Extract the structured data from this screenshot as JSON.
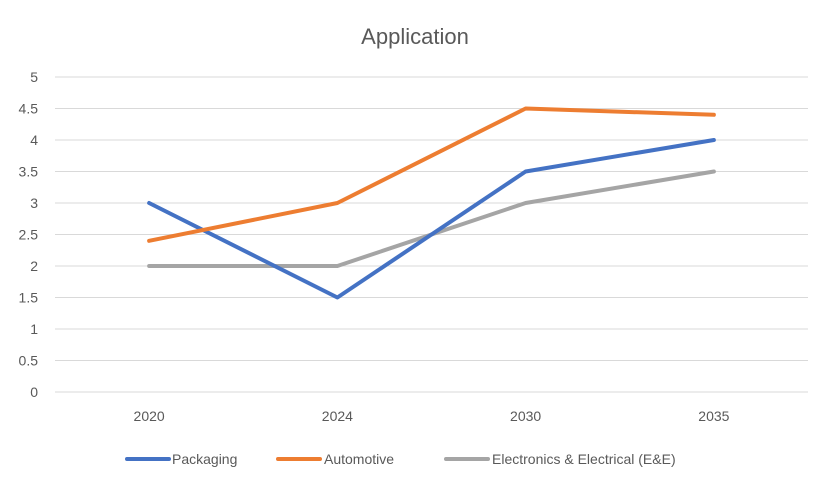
{
  "chart_data": {
    "type": "line",
    "title": "Application",
    "xlabel": "",
    "ylabel": "",
    "categories": [
      "2020",
      "2024",
      "2030",
      "2035"
    ],
    "ylim": [
      0,
      5
    ],
    "yticks": [
      0,
      0.5,
      1,
      1.5,
      2,
      2.5,
      3,
      3.5,
      4,
      4.5,
      5
    ],
    "ytick_labels": [
      "0",
      "0.5",
      "1",
      "1.5",
      "2",
      "2.5",
      "3",
      "3.5",
      "4",
      "4.5",
      "5"
    ],
    "grid": true,
    "legend_position": "bottom",
    "series": [
      {
        "name": "Packaging",
        "color": "#4472C4",
        "values": [
          3,
          1.5,
          3.5,
          4
        ]
      },
      {
        "name": "Automotive",
        "color": "#ED7D31",
        "values": [
          2.4,
          3,
          4.5,
          4.4
        ]
      },
      {
        "name": "Electronics & Electrical (E&E)",
        "color": "#A5A5A5",
        "values": [
          2,
          2,
          3,
          3.5
        ]
      }
    ]
  }
}
